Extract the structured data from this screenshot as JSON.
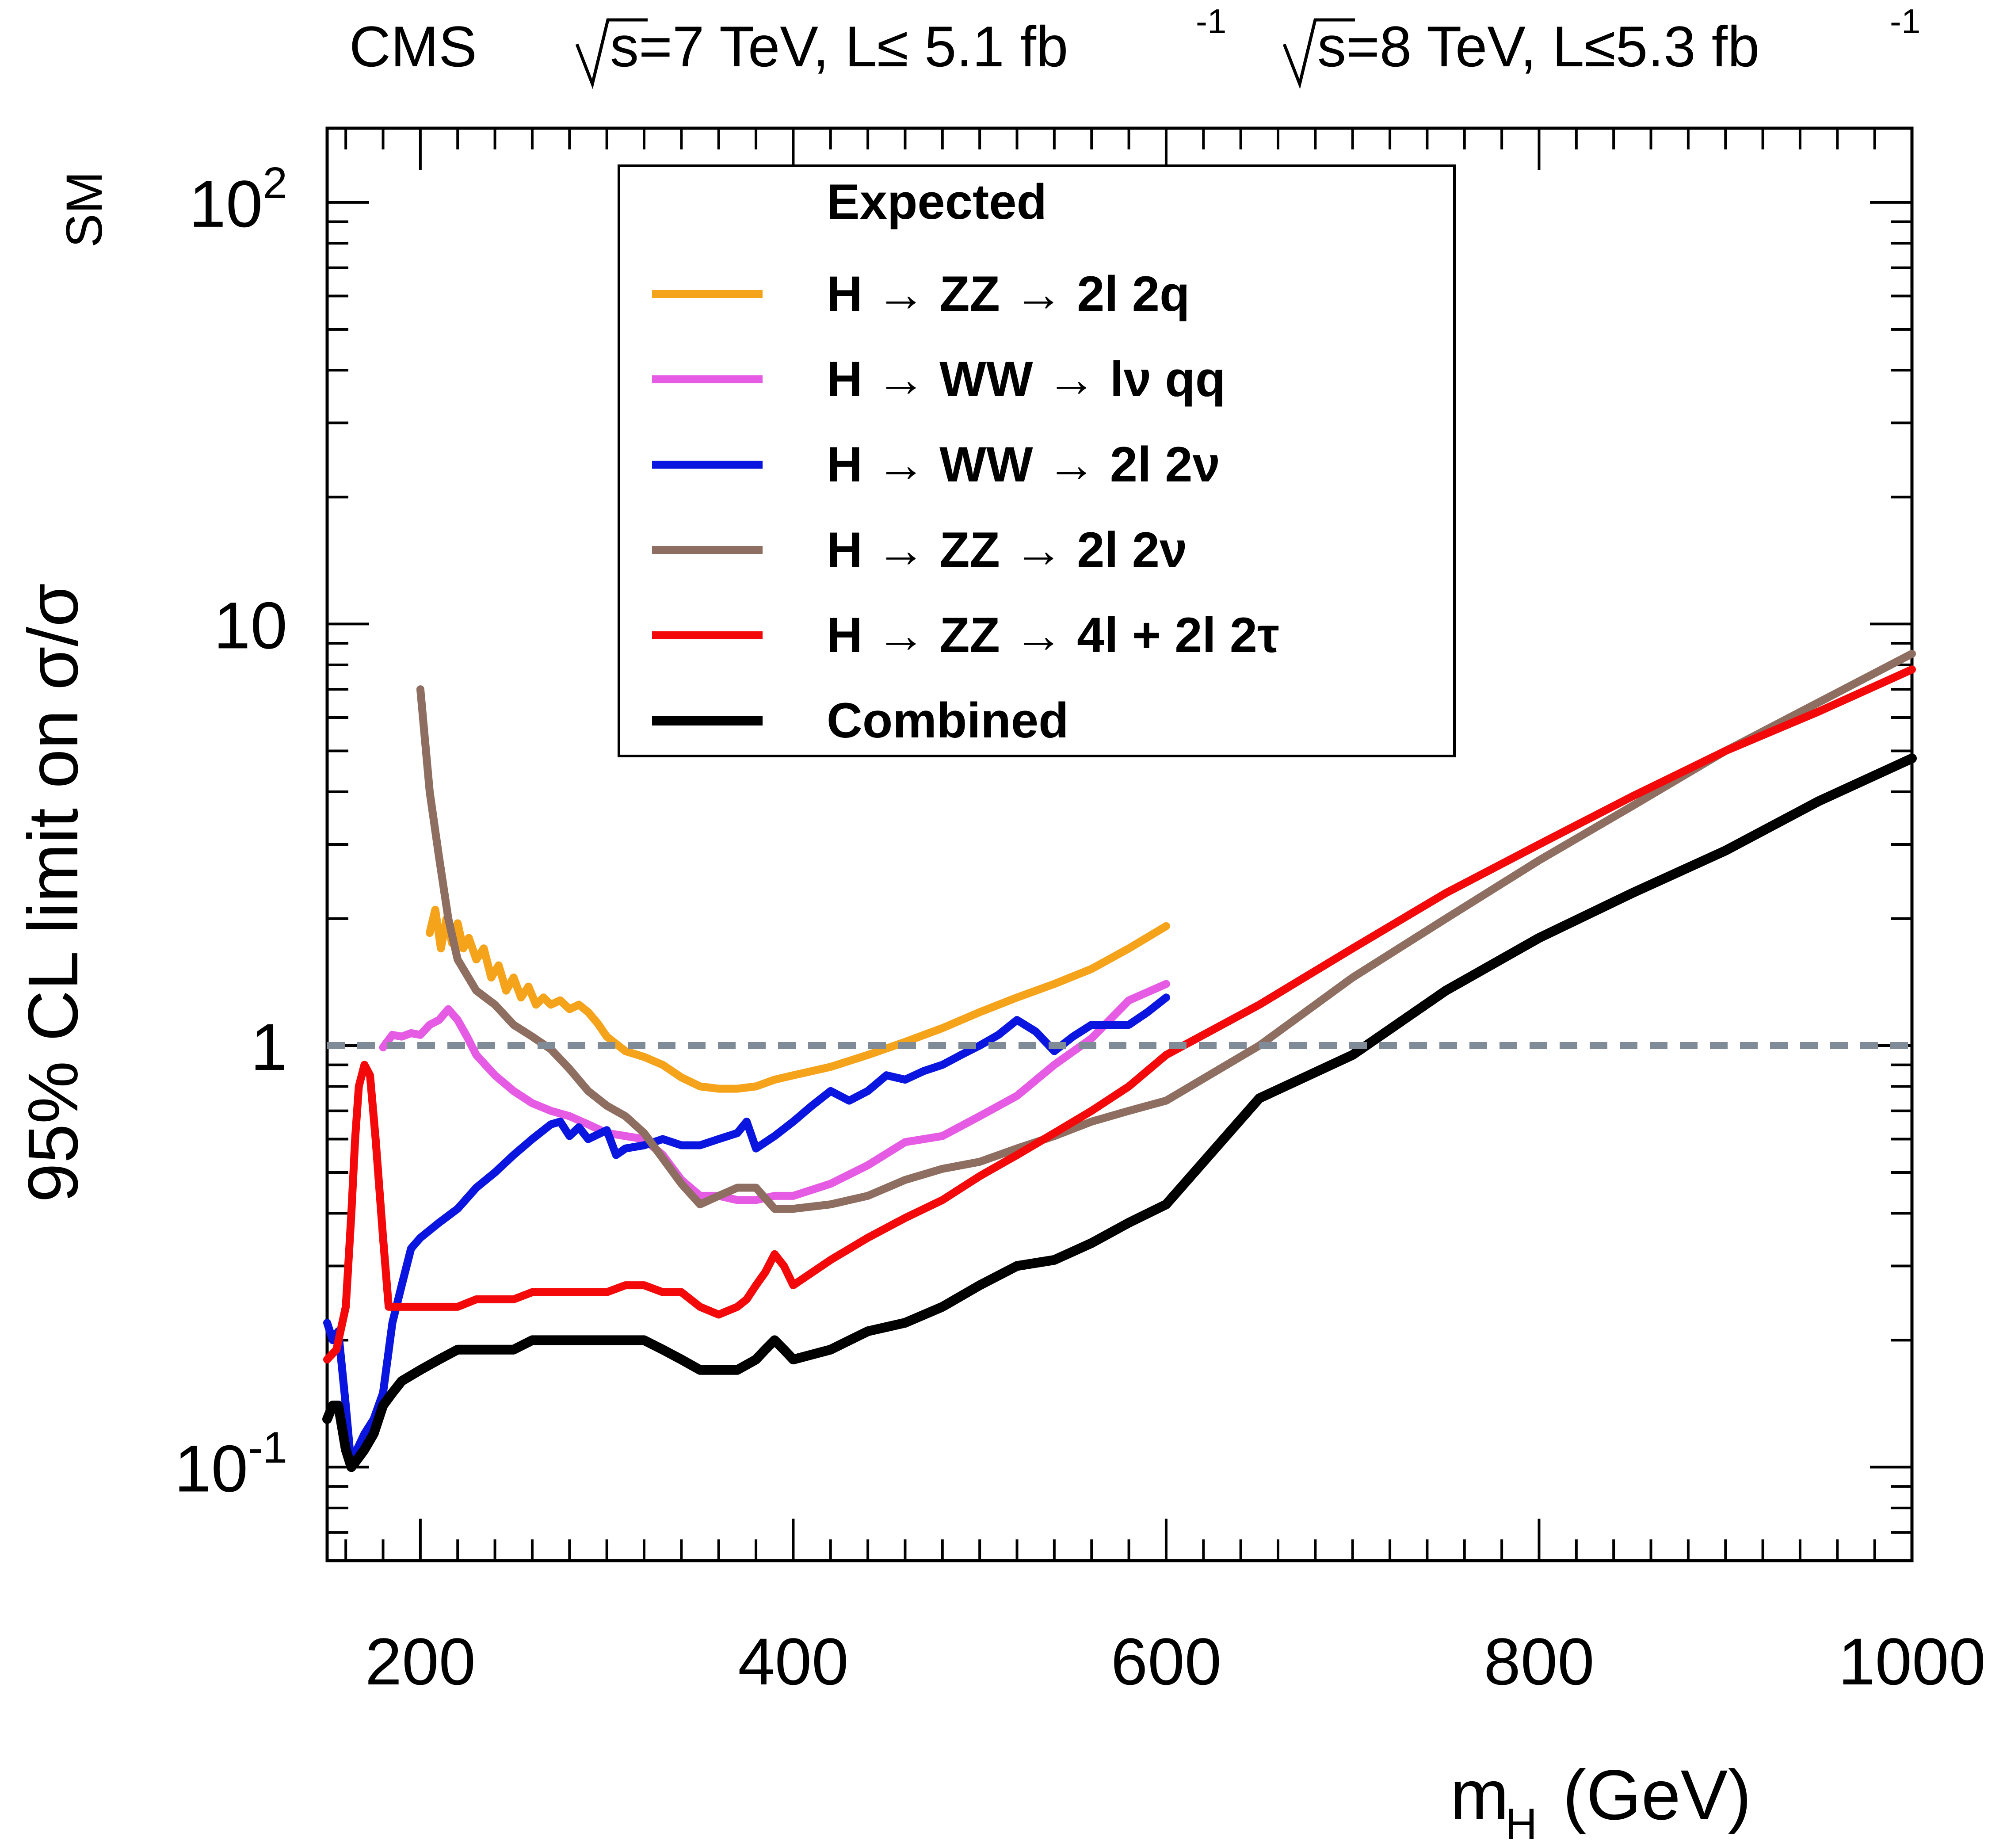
{
  "header": {
    "experiment": "CMS",
    "lumi_7tev_prefix": "s=7 TeV, L≤ 5.1 fb",
    "lumi_8tev_prefix": "s=8 TeV, L≤5.3 fb",
    "lumi_exponent": "-1"
  },
  "chart_data": {
    "type": "line",
    "xlabel": "m",
    "xlabel_sub": "H",
    "xlabel_unit": "(GeV)",
    "ylabel": "95% CL limit on σ/σ",
    "ylabel_sub": "SM",
    "xlim": [
      150,
      1000
    ],
    "ylim": [
      0.06,
      150
    ],
    "yscale": "log",
    "x_ticks": [
      200,
      400,
      600,
      800,
      1000
    ],
    "y_tick_labels": [
      {
        "value": 0.1,
        "base": "10",
        "exp": "-1"
      },
      {
        "value": 1,
        "base": "1",
        "exp": ""
      },
      {
        "value": 10,
        "base": "10",
        "exp": ""
      },
      {
        "value": 100,
        "base": "10",
        "exp": "2"
      }
    ],
    "reference_line": {
      "y": 1,
      "style": "dashed",
      "color": "#7f8c97"
    },
    "legend": {
      "title": "Expected",
      "placement": "top-center"
    },
    "series": [
      {
        "name": "H → ZZ → 2l 2q",
        "color": "#f5a31a",
        "points": [
          [
            205,
            1.85
          ],
          [
            208,
            2.1
          ],
          [
            211,
            1.7
          ],
          [
            214,
            2.0
          ],
          [
            217,
            1.75
          ],
          [
            220,
            1.95
          ],
          [
            223,
            1.7
          ],
          [
            226,
            1.8
          ],
          [
            230,
            1.6
          ],
          [
            234,
            1.7
          ],
          [
            238,
            1.45
          ],
          [
            242,
            1.55
          ],
          [
            246,
            1.35
          ],
          [
            250,
            1.45
          ],
          [
            254,
            1.3
          ],
          [
            258,
            1.38
          ],
          [
            262,
            1.25
          ],
          [
            266,
            1.3
          ],
          [
            270,
            1.25
          ],
          [
            275,
            1.28
          ],
          [
            280,
            1.22
          ],
          [
            285,
            1.25
          ],
          [
            290,
            1.2
          ],
          [
            295,
            1.13
          ],
          [
            300,
            1.05
          ],
          [
            310,
            0.97
          ],
          [
            320,
            0.94
          ],
          [
            330,
            0.9
          ],
          [
            340,
            0.84
          ],
          [
            350,
            0.8
          ],
          [
            360,
            0.79
          ],
          [
            370,
            0.79
          ],
          [
            380,
            0.8
          ],
          [
            390,
            0.83
          ],
          [
            400,
            0.85
          ],
          [
            420,
            0.89
          ],
          [
            440,
            0.95
          ],
          [
            460,
            1.02
          ],
          [
            480,
            1.1
          ],
          [
            500,
            1.2
          ],
          [
            520,
            1.3
          ],
          [
            540,
            1.4
          ],
          [
            560,
            1.52
          ],
          [
            580,
            1.7
          ],
          [
            600,
            1.92
          ]
        ]
      },
      {
        "name": "H → WW → lν qq",
        "color": "#e55be3",
        "points": [
          [
            180,
            0.99
          ],
          [
            185,
            1.06
          ],
          [
            190,
            1.05
          ],
          [
            195,
            1.07
          ],
          [
            200,
            1.06
          ],
          [
            205,
            1.12
          ],
          [
            210,
            1.15
          ],
          [
            215,
            1.22
          ],
          [
            220,
            1.15
          ],
          [
            225,
            1.05
          ],
          [
            230,
            0.95
          ],
          [
            240,
            0.85
          ],
          [
            250,
            0.78
          ],
          [
            260,
            0.73
          ],
          [
            270,
            0.7
          ],
          [
            280,
            0.68
          ],
          [
            290,
            0.65
          ],
          [
            300,
            0.62
          ],
          [
            310,
            0.61
          ],
          [
            320,
            0.6
          ],
          [
            330,
            0.55
          ],
          [
            340,
            0.48
          ],
          [
            350,
            0.44
          ],
          [
            360,
            0.44
          ],
          [
            370,
            0.43
          ],
          [
            380,
            0.43
          ],
          [
            390,
            0.44
          ],
          [
            400,
            0.44
          ],
          [
            420,
            0.47
          ],
          [
            440,
            0.52
          ],
          [
            460,
            0.59
          ],
          [
            480,
            0.61
          ],
          [
            500,
            0.68
          ],
          [
            520,
            0.76
          ],
          [
            540,
            0.9
          ],
          [
            560,
            1.04
          ],
          [
            580,
            1.28
          ],
          [
            600,
            1.4
          ]
        ]
      },
      {
        "name": "H → WW → 2l 2ν",
        "color": "#0a15e0",
        "points": [
          [
            150,
            0.22
          ],
          [
            153,
            0.2
          ],
          [
            156,
            0.21
          ],
          [
            160,
            0.14
          ],
          [
            163,
            0.1
          ],
          [
            166,
            0.11
          ],
          [
            170,
            0.12
          ],
          [
            175,
            0.13
          ],
          [
            180,
            0.15
          ],
          [
            185,
            0.22
          ],
          [
            190,
            0.27
          ],
          [
            195,
            0.33
          ],
          [
            200,
            0.35
          ],
          [
            210,
            0.38
          ],
          [
            220,
            0.41
          ],
          [
            230,
            0.46
          ],
          [
            240,
            0.5
          ],
          [
            250,
            0.55
          ],
          [
            260,
            0.6
          ],
          [
            270,
            0.65
          ],
          [
            275,
            0.66
          ],
          [
            280,
            0.61
          ],
          [
            285,
            0.64
          ],
          [
            290,
            0.6
          ],
          [
            300,
            0.63
          ],
          [
            305,
            0.55
          ],
          [
            310,
            0.57
          ],
          [
            320,
            0.58
          ],
          [
            330,
            0.6
          ],
          [
            340,
            0.58
          ],
          [
            350,
            0.58
          ],
          [
            360,
            0.6
          ],
          [
            370,
            0.62
          ],
          [
            375,
            0.66
          ],
          [
            380,
            0.57
          ],
          [
            390,
            0.61
          ],
          [
            400,
            0.66
          ],
          [
            410,
            0.72
          ],
          [
            420,
            0.78
          ],
          [
            430,
            0.74
          ],
          [
            440,
            0.78
          ],
          [
            450,
            0.85
          ],
          [
            460,
            0.83
          ],
          [
            470,
            0.87
          ],
          [
            480,
            0.9
          ],
          [
            490,
            0.95
          ],
          [
            500,
            1.0
          ],
          [
            510,
            1.06
          ],
          [
            520,
            1.15
          ],
          [
            530,
            1.08
          ],
          [
            540,
            0.97
          ],
          [
            550,
            1.05
          ],
          [
            560,
            1.12
          ],
          [
            570,
            1.12
          ],
          [
            580,
            1.12
          ],
          [
            590,
            1.2
          ],
          [
            600,
            1.3
          ]
        ]
      },
      {
        "name": "H → ZZ → 2l 2ν",
        "color": "#8e6e60",
        "points": [
          [
            200,
            7.0
          ],
          [
            205,
            4.0
          ],
          [
            210,
            2.8
          ],
          [
            215,
            2.0
          ],
          [
            220,
            1.6
          ],
          [
            230,
            1.35
          ],
          [
            240,
            1.25
          ],
          [
            250,
            1.12
          ],
          [
            260,
            1.05
          ],
          [
            270,
            0.98
          ],
          [
            280,
            0.88
          ],
          [
            290,
            0.78
          ],
          [
            300,
            0.72
          ],
          [
            310,
            0.68
          ],
          [
            320,
            0.62
          ],
          [
            330,
            0.54
          ],
          [
            340,
            0.47
          ],
          [
            350,
            0.42
          ],
          [
            360,
            0.44
          ],
          [
            370,
            0.46
          ],
          [
            380,
            0.46
          ],
          [
            390,
            0.41
          ],
          [
            400,
            0.41
          ],
          [
            420,
            0.42
          ],
          [
            440,
            0.44
          ],
          [
            460,
            0.48
          ],
          [
            480,
            0.51
          ],
          [
            500,
            0.53
          ],
          [
            520,
            0.57
          ],
          [
            540,
            0.61
          ],
          [
            560,
            0.66
          ],
          [
            580,
            0.7
          ],
          [
            600,
            0.74
          ],
          [
            650,
            1.0
          ],
          [
            700,
            1.45
          ],
          [
            750,
            2.0
          ],
          [
            800,
            2.75
          ],
          [
            850,
            3.7
          ],
          [
            900,
            5.0
          ],
          [
            1000,
            8.5
          ]
        ]
      },
      {
        "name": "H → ZZ → 4l + 2l 2τ",
        "color": "#f4090a",
        "points": [
          [
            150,
            0.18
          ],
          [
            155,
            0.19
          ],
          [
            160,
            0.24
          ],
          [
            163,
            0.4
          ],
          [
            165,
            0.6
          ],
          [
            167,
            0.8
          ],
          [
            170,
            0.9
          ],
          [
            173,
            0.85
          ],
          [
            176,
            0.6
          ],
          [
            180,
            0.35
          ],
          [
            183,
            0.24
          ],
          [
            188,
            0.24
          ],
          [
            195,
            0.24
          ],
          [
            200,
            0.24
          ],
          [
            210,
            0.24
          ],
          [
            220,
            0.24
          ],
          [
            230,
            0.25
          ],
          [
            240,
            0.25
          ],
          [
            250,
            0.25
          ],
          [
            260,
            0.26
          ],
          [
            270,
            0.26
          ],
          [
            280,
            0.26
          ],
          [
            290,
            0.26
          ],
          [
            300,
            0.26
          ],
          [
            310,
            0.27
          ],
          [
            320,
            0.27
          ],
          [
            330,
            0.26
          ],
          [
            340,
            0.26
          ],
          [
            350,
            0.24
          ],
          [
            360,
            0.23
          ],
          [
            370,
            0.24
          ],
          [
            375,
            0.25
          ],
          [
            380,
            0.27
          ],
          [
            385,
            0.29
          ],
          [
            390,
            0.32
          ],
          [
            395,
            0.3
          ],
          [
            400,
            0.27
          ],
          [
            420,
            0.31
          ],
          [
            440,
            0.35
          ],
          [
            460,
            0.39
          ],
          [
            480,
            0.43
          ],
          [
            500,
            0.49
          ],
          [
            520,
            0.55
          ],
          [
            540,
            0.62
          ],
          [
            560,
            0.7
          ],
          [
            580,
            0.8
          ],
          [
            600,
            0.95
          ],
          [
            650,
            1.25
          ],
          [
            700,
            1.7
          ],
          [
            750,
            2.3
          ],
          [
            800,
            3.0
          ],
          [
            850,
            3.9
          ],
          [
            900,
            5.0
          ],
          [
            950,
            6.2
          ],
          [
            1000,
            7.8
          ]
        ]
      },
      {
        "name": "Combined",
        "color": "#000000",
        "points": [
          [
            150,
            0.13
          ],
          [
            153,
            0.14
          ],
          [
            156,
            0.14
          ],
          [
            160,
            0.11
          ],
          [
            163,
            0.1
          ],
          [
            166,
            0.104
          ],
          [
            170,
            0.11
          ],
          [
            175,
            0.12
          ],
          [
            180,
            0.14
          ],
          [
            185,
            0.15
          ],
          [
            190,
            0.16
          ],
          [
            200,
            0.17
          ],
          [
            210,
            0.18
          ],
          [
            220,
            0.19
          ],
          [
            230,
            0.19
          ],
          [
            240,
            0.19
          ],
          [
            250,
            0.19
          ],
          [
            260,
            0.2
          ],
          [
            270,
            0.2
          ],
          [
            280,
            0.2
          ],
          [
            290,
            0.2
          ],
          [
            300,
            0.2
          ],
          [
            310,
            0.2
          ],
          [
            320,
            0.2
          ],
          [
            330,
            0.19
          ],
          [
            340,
            0.18
          ],
          [
            350,
            0.17
          ],
          [
            360,
            0.17
          ],
          [
            370,
            0.17
          ],
          [
            380,
            0.18
          ],
          [
            385,
            0.19
          ],
          [
            390,
            0.2
          ],
          [
            395,
            0.19
          ],
          [
            400,
            0.18
          ],
          [
            420,
            0.19
          ],
          [
            440,
            0.21
          ],
          [
            460,
            0.22
          ],
          [
            480,
            0.24
          ],
          [
            500,
            0.27
          ],
          [
            520,
            0.3
          ],
          [
            540,
            0.31
          ],
          [
            560,
            0.34
          ],
          [
            580,
            0.38
          ],
          [
            600,
            0.42
          ],
          [
            650,
            0.75
          ],
          [
            700,
            0.95
          ],
          [
            750,
            1.35
          ],
          [
            800,
            1.8
          ],
          [
            850,
            2.3
          ],
          [
            900,
            2.9
          ],
          [
            950,
            3.8
          ],
          [
            1000,
            4.8
          ]
        ]
      }
    ]
  }
}
